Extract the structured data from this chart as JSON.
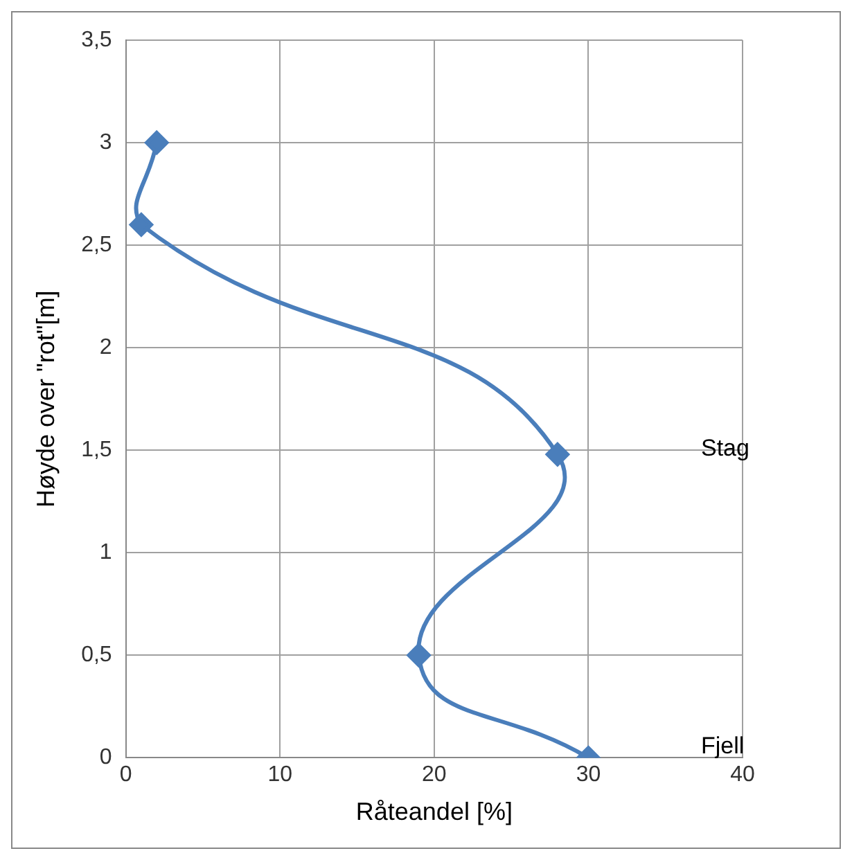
{
  "chart_data": {
    "type": "line",
    "xlabel": "Råteandel [%]",
    "ylabel": "Høyde over \"rot\"[m]",
    "x": [
      2,
      1,
      28,
      19,
      30
    ],
    "series": [
      {
        "color": "#4a7ebb",
        "values": [
          3,
          2.6,
          1.48,
          0.5,
          0
        ]
      }
    ],
    "xlim": [
      0,
      40
    ],
    "xticks": [
      0,
      10,
      20,
      30,
      40
    ],
    "ylim": [
      0,
      3.5
    ],
    "yticks": [
      {
        "value": 0,
        "label": "0"
      },
      {
        "value": 0.5,
        "label": "0,5"
      },
      {
        "value": 1,
        "label": "1"
      },
      {
        "value": 1.5,
        "label": "1,5"
      },
      {
        "value": 2,
        "label": "2"
      },
      {
        "value": 2.5,
        "label": "2,5"
      },
      {
        "value": 3,
        "label": "3"
      },
      {
        "value": 3.5,
        "label": "3,5"
      }
    ],
    "annotations": [
      "Stag",
      "Fjell"
    ],
    "grid": true,
    "legend": false,
    "marker": "diamond",
    "line_style": "solid"
  }
}
